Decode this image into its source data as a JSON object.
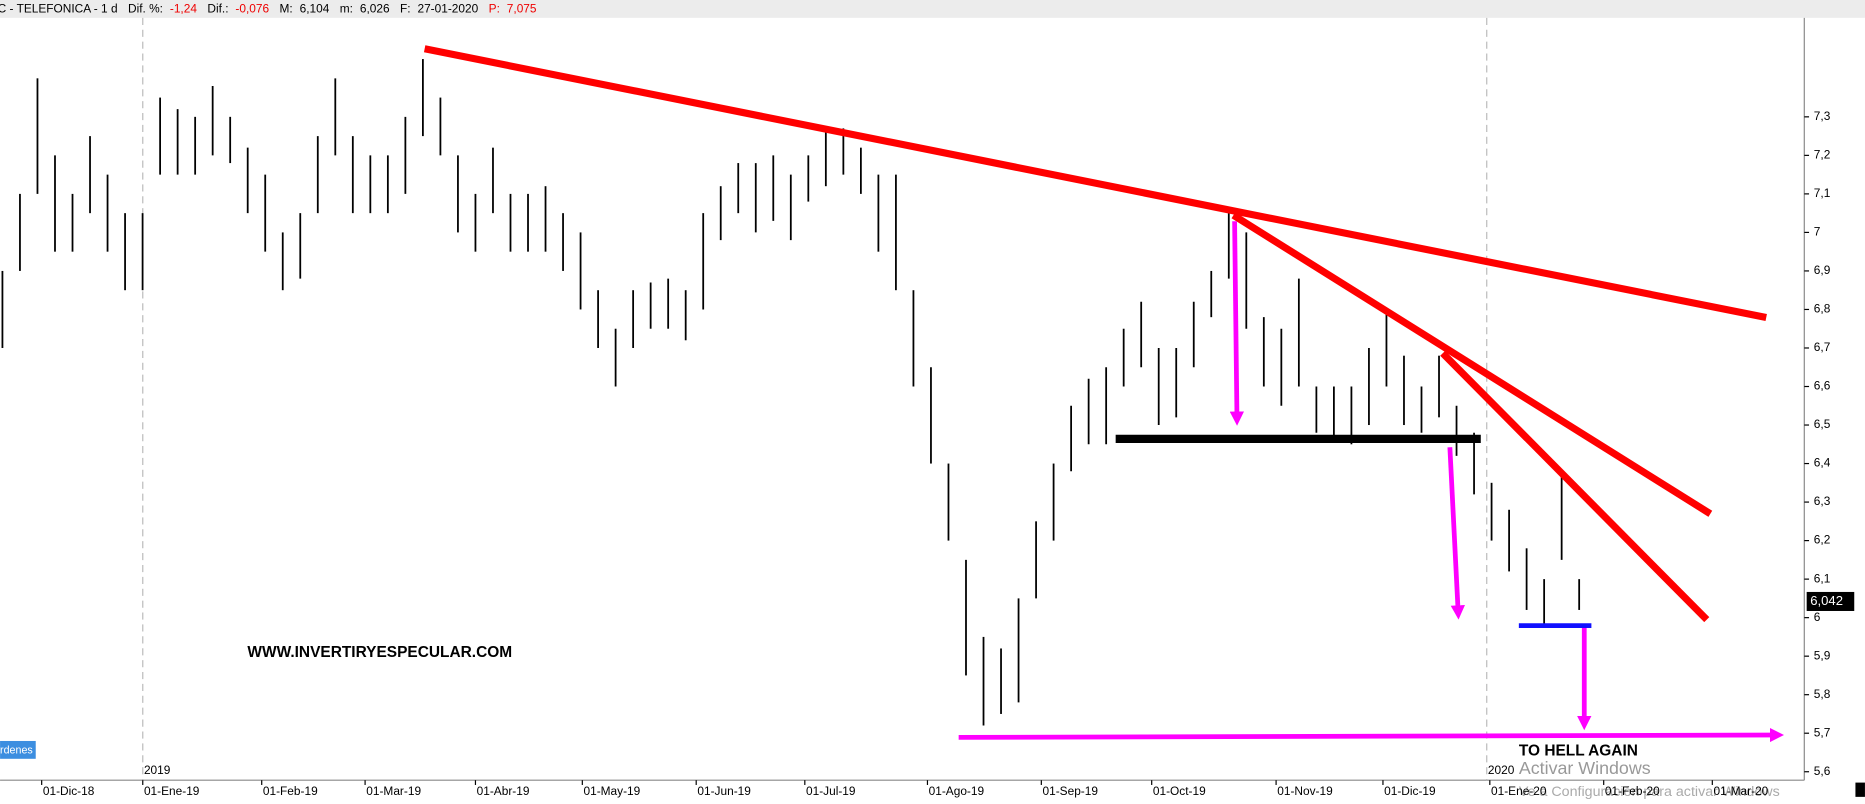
{
  "chart_data": {
    "type": "hilo",
    "header": {
      "symbol": "C - TELEFONICA - 1 d",
      "k1": "Dif. %:",
      "v1": "-1,24",
      "k2": "Dif.:",
      "v2": "-0,076",
      "k3": "M:",
      "v3": "6,104",
      "k4": "m:",
      "v4": "6,026",
      "k5": "F:",
      "v5": "27-01-2020",
      "k6": "P:",
      "v6": "7,075"
    },
    "color": "#000000",
    "high": [
      6.9,
      7.1,
      7.4,
      7.2,
      7.1,
      7.25,
      7.15,
      7.05,
      7.05,
      7.35,
      7.32,
      7.3,
      7.38,
      7.3,
      7.22,
      7.15,
      7.0,
      7.05,
      7.25,
      7.4,
      7.25,
      7.2,
      7.2,
      7.3,
      7.45,
      7.35,
      7.2,
      7.1,
      7.22,
      7.1,
      7.1,
      7.12,
      7.05,
      7.0,
      6.85,
      6.75,
      6.85,
      6.87,
      6.88,
      6.85,
      7.05,
      7.12,
      7.18,
      7.18,
      7.2,
      7.15,
      7.2,
      7.27,
      7.27,
      7.22,
      7.15,
      7.15,
      6.85,
      6.65,
      6.4,
      6.15,
      5.95,
      5.92,
      6.05,
      6.25,
      6.4,
      6.55,
      6.62,
      6.65,
      6.75,
      6.82,
      6.7,
      6.7,
      6.82,
      6.9,
      7.05,
      7.0,
      6.78,
      6.75,
      6.88,
      6.6,
      6.6,
      6.6,
      6.7,
      6.8,
      6.68,
      6.6,
      6.68,
      6.55,
      6.48,
      6.35,
      6.28,
      6.18,
      6.1,
      6.38,
      6.1
    ],
    "low": [
      6.7,
      6.9,
      7.1,
      6.95,
      6.95,
      7.05,
      6.95,
      6.85,
      6.85,
      7.15,
      7.15,
      7.15,
      7.2,
      7.18,
      7.05,
      6.95,
      6.85,
      6.88,
      7.05,
      7.2,
      7.05,
      7.05,
      7.05,
      7.1,
      7.25,
      7.2,
      7.0,
      6.95,
      7.05,
      6.95,
      6.95,
      6.95,
      6.9,
      6.8,
      6.7,
      6.6,
      6.7,
      6.75,
      6.75,
      6.72,
      6.8,
      6.98,
      7.05,
      7.0,
      7.03,
      6.98,
      7.08,
      7.12,
      7.15,
      7.1,
      6.95,
      6.85,
      6.6,
      6.4,
      6.2,
      5.85,
      5.72,
      5.75,
      5.78,
      6.05,
      6.2,
      6.38,
      6.45,
      6.45,
      6.6,
      6.65,
      6.5,
      6.52,
      6.65,
      6.78,
      6.88,
      6.75,
      6.6,
      6.55,
      6.6,
      6.48,
      6.47,
      6.45,
      6.5,
      6.6,
      6.5,
      6.48,
      6.52,
      6.42,
      6.32,
      6.2,
      6.12,
      6.02,
      5.98,
      6.15,
      6.02
    ],
    "xlim": [
      -0.136,
      102.85
    ],
    "xticks": [
      {
        "value": 2.24,
        "label": "01-Dic-18"
      },
      {
        "value": 8.01,
        "label": "01-Ene-19"
      },
      {
        "value": 14.8,
        "label": "01-Feb-19"
      },
      {
        "value": 20.7,
        "label": "01-Mar-19"
      },
      {
        "value": 27.0,
        "label": "01-Abr-19"
      },
      {
        "value": 33.1,
        "label": "01-May-19"
      },
      {
        "value": 39.6,
        "label": "01-Jun-19"
      },
      {
        "value": 45.8,
        "label": "01-Jul-19"
      },
      {
        "value": 52.8,
        "label": "01-Ago-19"
      },
      {
        "value": 59.3,
        "label": "01-Sep-19"
      },
      {
        "value": 65.6,
        "label": "01-Oct-19"
      },
      {
        "value": 72.7,
        "label": "01-Nov-19"
      },
      {
        "value": 78.8,
        "label": "01-Dic-19"
      },
      {
        "value": 84.9,
        "label": "01-Ene-20"
      },
      {
        "value": 91.4,
        "label": "01-Feb-20"
      },
      {
        "value": 97.6,
        "label": "01-Mar-20"
      }
    ],
    "ylim": [
      5.578,
      7.557
    ],
    "yticks": [
      {
        "value": 5.6,
        "label": "5,6"
      },
      {
        "value": 5.7,
        "label": "5,7"
      },
      {
        "value": 5.8,
        "label": "5,8"
      },
      {
        "value": 5.9,
        "label": "5,9"
      },
      6,
      {
        "value": 6.1,
        "label": "6,1"
      },
      {
        "value": 6.2,
        "label": "6,2"
      },
      {
        "value": 6.3,
        "label": "6,3"
      },
      {
        "value": 6.4,
        "label": "6,4"
      },
      {
        "value": 6.5,
        "label": "6,5"
      },
      {
        "value": 6.6,
        "label": "6,6"
      },
      {
        "value": 6.7,
        "label": "6,7"
      },
      {
        "value": 6.8,
        "label": "6,8"
      },
      {
        "value": 6.9,
        "label": "6,9"
      },
      7,
      {
        "value": 7.1,
        "label": "7,1"
      },
      {
        "value": 7.2,
        "label": "7,2"
      },
      {
        "value": 7.3,
        "label": "7,3"
      }
    ],
    "last_price": {
      "value": 6.042,
      "label": "6,042"
    },
    "year_labels": [
      "2019",
      "2020"
    ],
    "annotations": [
      "WWW.INVERTIRYESPECULAR.COM",
      "TO HELL AGAIN"
    ],
    "side_tab": "rdenes",
    "watermark": [
      "Activar Windows",
      "Ve a Configuración para activar Windows"
    ]
  }
}
